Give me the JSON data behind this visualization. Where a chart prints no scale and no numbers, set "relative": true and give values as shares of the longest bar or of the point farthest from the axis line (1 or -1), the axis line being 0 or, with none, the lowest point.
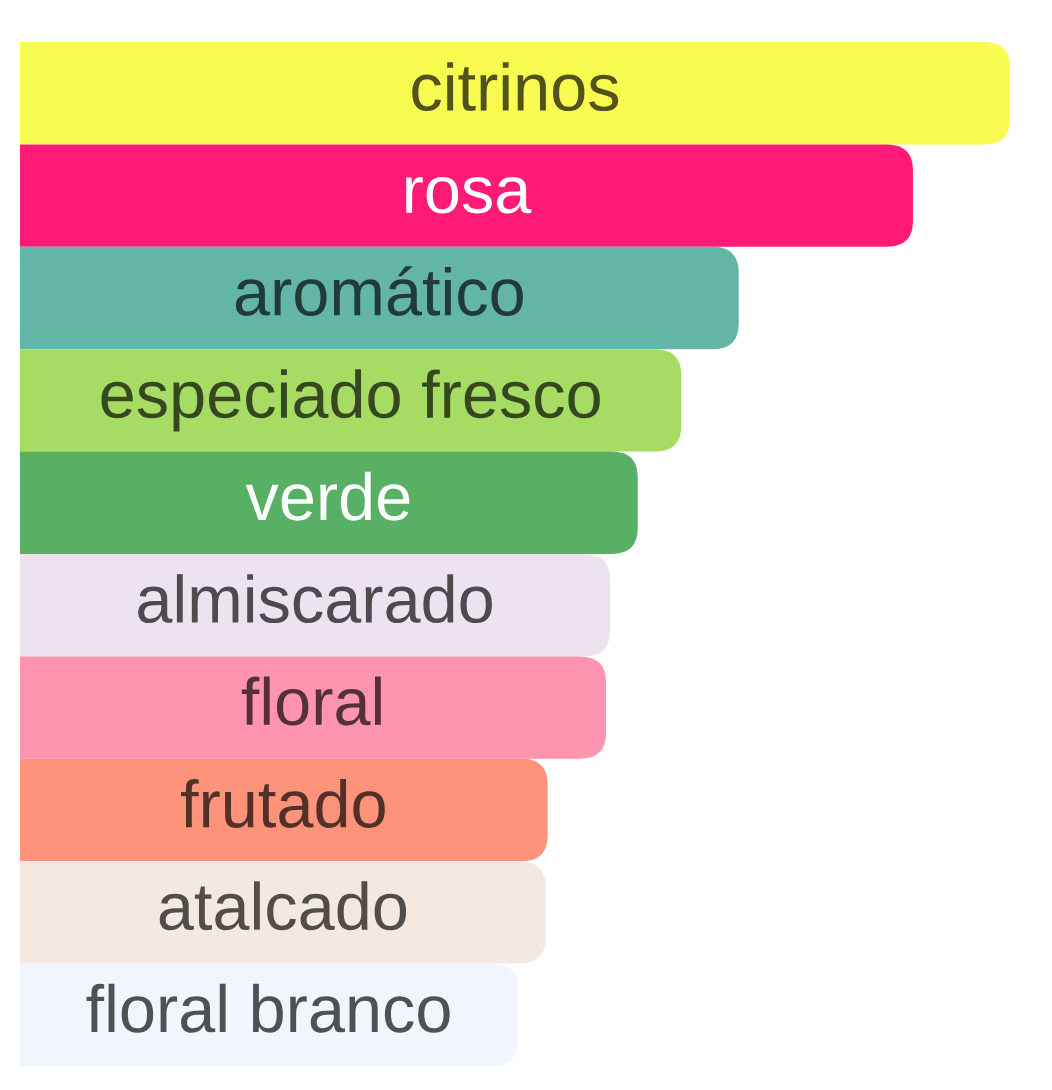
{
  "chart_data": {
    "type": "bar",
    "orientation": "horizontal",
    "relative": true,
    "categories": [
      "citrinos",
      "rosa",
      "aromático",
      "especiado fresco",
      "verde",
      "almiscarado",
      "floral",
      "frutado",
      "atalcado",
      "floral branco"
    ],
    "values": [
      1,
      0.902,
      0.726,
      0.668,
      0.624,
      0.596,
      0.592,
      0.533,
      0.531,
      0.503
    ],
    "colors": [
      "#f8fc50",
      "#fe1a76",
      "#63b5a6",
      "#a6db64",
      "#57b064",
      "#ede3f0",
      "#fe94b0",
      "#fd937a",
      "#f3e9e0",
      "#f1f5fd"
    ]
  }
}
